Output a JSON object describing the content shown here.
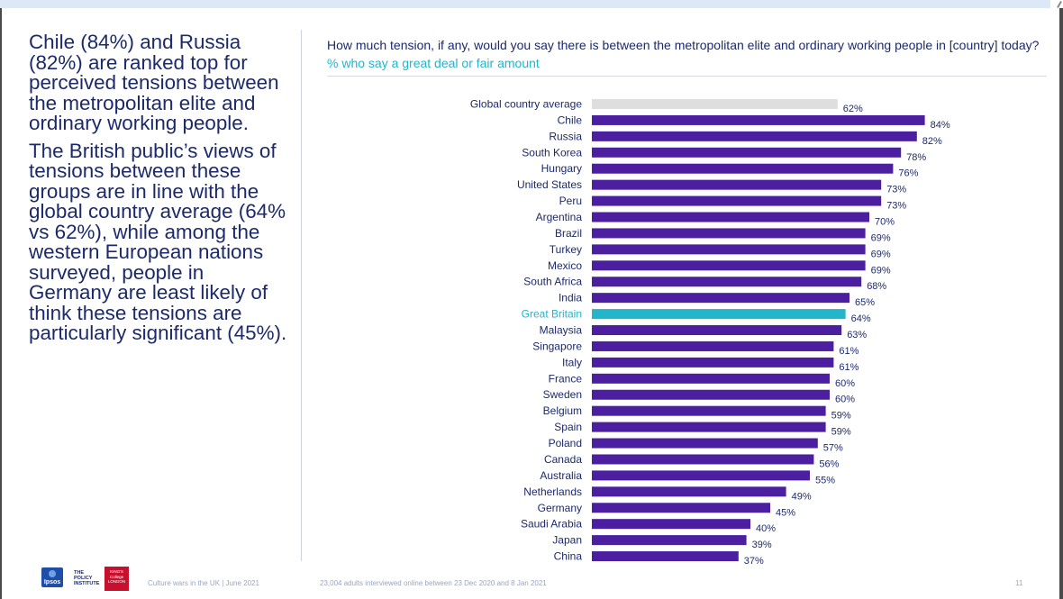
{
  "left_text": {
    "p1": "Chile (84%) and Russia (82%) are ranked top for perceived tensions between the metropolitan elite and ordinary working people.",
    "p2": "The British public’s views of tensions between these groups are in line with the global country average (64% vs 62%), while among the western European nations surveyed, people in Germany are least likely of think these tensions are particularly significant (45%)."
  },
  "question": {
    "text": "How much tension, if any, would you say there is between the metropolitan elite and ordinary working people in [country] today?",
    "subtitle": "% who say a great deal or fair amount"
  },
  "footer": {
    "source": "Culture wars in the UK | June 2021",
    "sample": "23,004 adults interviewed online between 23 Dec 2020 and 8 Jan 2021",
    "page": "11"
  },
  "logos": {
    "ipsos": "Ipsos",
    "policy": "THE POLICY INSTITUTE",
    "kings": "KING'S College LONDON"
  },
  "colors": {
    "bar": "#4b1fa0",
    "highlight": "#23b5c9",
    "average": "#dedede",
    "text": "#1c2a6b"
  },
  "chart_data": {
    "type": "bar",
    "orientation": "horizontal",
    "title": "How much tension, if any, would you say there is between the metropolitan elite and ordinary working people in [country] today?",
    "subtitle": "% who say a great deal or fair amount",
    "value_suffix": "%",
    "xlim": [
      0,
      100
    ],
    "grid": false,
    "categories": [
      "Global country average",
      "Chile",
      "Russia",
      "South Korea",
      "Hungary",
      "United States",
      "Peru",
      "Argentina",
      "Brazil",
      "Turkey",
      "Mexico",
      "South Africa",
      "India",
      "Great Britain",
      "Malaysia",
      "Singapore",
      "Italy",
      "France",
      "Sweden",
      "Belgium",
      "Spain",
      "Poland",
      "Canada",
      "Australia",
      "Netherlands",
      "Germany",
      "Saudi Arabia",
      "Japan",
      "China"
    ],
    "values": [
      62,
      84,
      82,
      78,
      76,
      73,
      73,
      70,
      69,
      69,
      69,
      68,
      65,
      64,
      63,
      61,
      61,
      60,
      60,
      59,
      59,
      57,
      56,
      55,
      49,
      45,
      40,
      39,
      37
    ],
    "highlight": {
      "Global country average": "average",
      "Great Britain": "highlight"
    }
  }
}
